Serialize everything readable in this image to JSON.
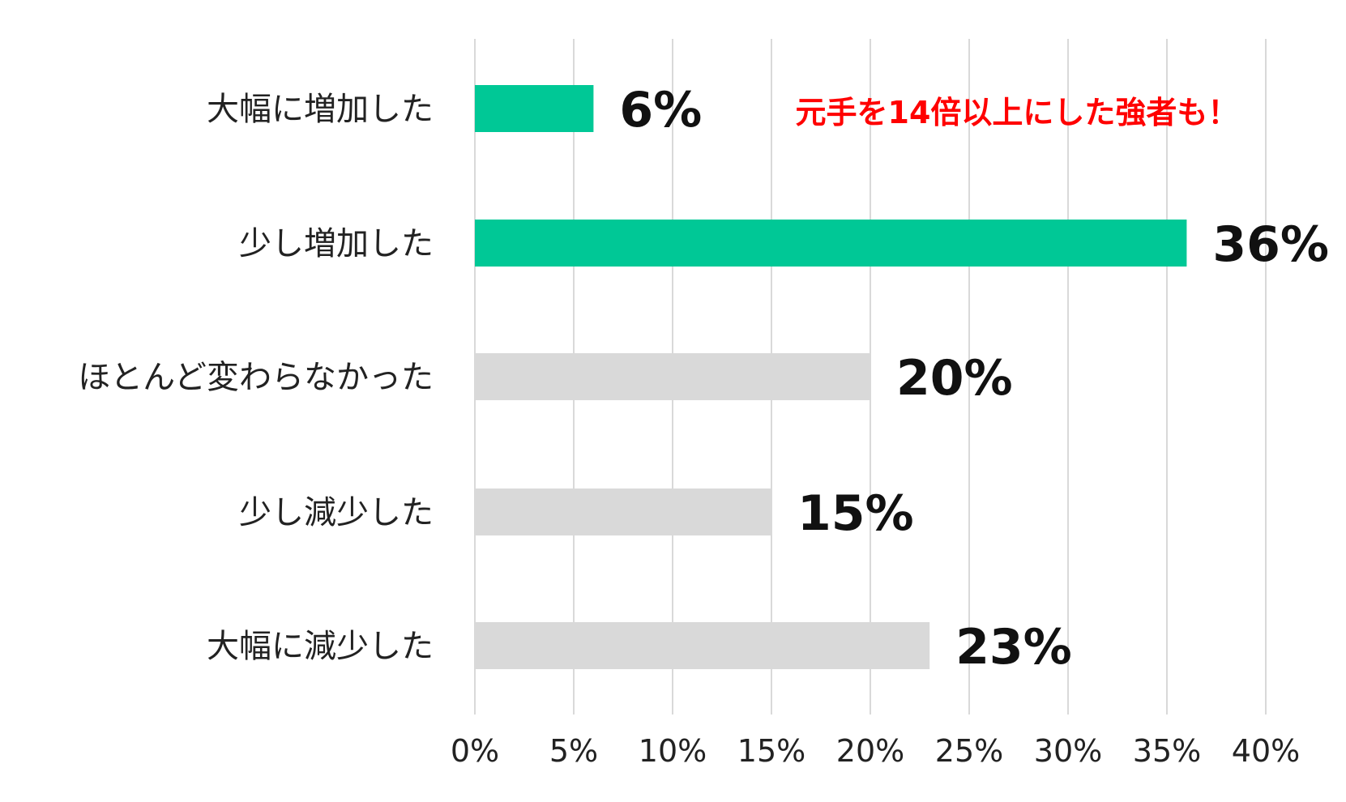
{
  "chart_data": {
    "type": "bar",
    "orientation": "horizontal",
    "categories": [
      "大幅に増加した",
      "少し増加した",
      "ほとんど変わらなかった",
      "少し減少した",
      "大幅に減少した"
    ],
    "values": [
      6,
      36,
      20,
      15,
      23
    ],
    "value_labels": [
      "6%",
      "36%",
      "20%",
      "15%",
      "23%"
    ],
    "bar_colors": [
      "#00c896",
      "#00c896",
      "#d9d9d9",
      "#d9d9d9",
      "#d9d9d9"
    ],
    "xlim": [
      0,
      40
    ],
    "x_ticks": [
      0,
      5,
      10,
      15,
      20,
      25,
      30,
      35,
      40
    ],
    "x_tick_labels": [
      "0%",
      "5%",
      "10%",
      "15%",
      "20%",
      "25%",
      "30%",
      "35%",
      "40%"
    ],
    "grid": "vertical",
    "gridline_color": "#d9d9d9",
    "annotation": {
      "text": "元手を14倍以上にした強者も！",
      "color": "#ff0000",
      "near_category": "大幅に増加した"
    }
  }
}
